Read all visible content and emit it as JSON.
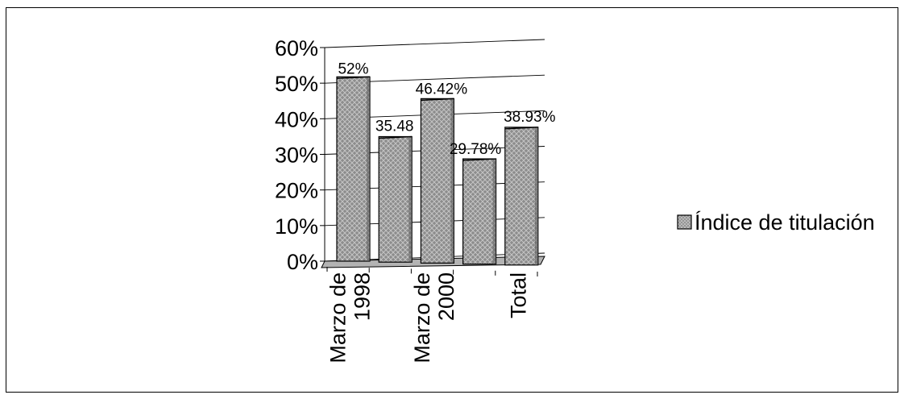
{
  "chart_data": {
    "type": "bar",
    "style": "3d-column",
    "categories": [
      "Marzo de 1998",
      "",
      "Marzo de 2000",
      "",
      "Total"
    ],
    "category_labels": [
      [
        "Marzo de",
        "1998"
      ],
      [],
      [
        "Marzo de",
        "2000"
      ],
      [],
      [
        "Total"
      ]
    ],
    "series": [
      {
        "name": "Índice de titulación",
        "values": [
          52,
          35.48,
          46.42,
          29.78,
          38.93
        ],
        "data_labels": [
          "52%",
          "35.48",
          "46.42%",
          "29.78%",
          "38.93%"
        ]
      }
    ],
    "ylim": [
      0,
      60
    ],
    "y_ticks": [
      "0%",
      "10%",
      "20%",
      "30%",
      "40%",
      "50%",
      "60%"
    ],
    "gridlines": true,
    "legend_position": "right",
    "colors": {
      "bar_fill": "#8c8c8c",
      "bar_pattern_light": "#b8b8b8",
      "bar_top": "#a6a6a6",
      "floor": "#b3b3b3",
      "axis": "#000000"
    }
  }
}
